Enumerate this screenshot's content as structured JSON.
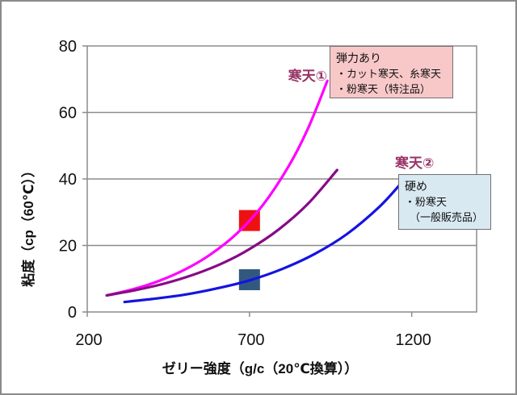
{
  "chart_data": {
    "type": "line",
    "title": "",
    "xlabel": "ゼリー強度（g/c（20℃換算））",
    "ylabel": "粘度（cp（60℃））",
    "xlim": [
      200,
      1400
    ],
    "ylim": [
      0,
      80
    ],
    "x_ticks": [
      200,
      700,
      1200
    ],
    "y_ticks": [
      0,
      20,
      40,
      60,
      80
    ],
    "grid": "horizontal-only",
    "legend_position": "none",
    "series": [
      {
        "id": "kanten-1",
        "label": "寒天①",
        "color": "#ff00ff",
        "points": [
          [
            260,
            5
          ],
          [
            340,
            6.8
          ],
          [
            420,
            9.3
          ],
          [
            500,
            12.7
          ],
          [
            580,
            17.3
          ],
          [
            660,
            23.5
          ],
          [
            740,
            32
          ],
          [
            820,
            43.7
          ],
          [
            880,
            55.1
          ],
          [
            940,
            69.5
          ]
        ]
      },
      {
        "id": "kanten-intermediate",
        "label": "",
        "color": "#870b87",
        "points": [
          [
            260,
            5
          ],
          [
            350,
            6.6
          ],
          [
            440,
            8.6
          ],
          [
            530,
            11.3
          ],
          [
            620,
            14.8
          ],
          [
            700,
            18.9
          ],
          [
            790,
            24.8
          ],
          [
            880,
            32.5
          ],
          [
            970,
            42.7
          ]
        ]
      },
      {
        "id": "kanten-2",
        "label": "寒天②",
        "color": "#1414e0",
        "points": [
          [
            315,
            3
          ],
          [
            400,
            3.9
          ],
          [
            500,
            5.2
          ],
          [
            600,
            7.1
          ],
          [
            700,
            9.5
          ],
          [
            800,
            12.9
          ],
          [
            900,
            17.4
          ],
          [
            1000,
            23.4
          ],
          [
            1100,
            31.6
          ],
          [
            1170,
            39
          ]
        ]
      }
    ],
    "point_markers": [
      {
        "id": "marker-elastic",
        "shape": "square",
        "color": "#ee1111",
        "x": 700,
        "y": 27.5
      },
      {
        "id": "marker-hard",
        "shape": "square",
        "color": "#31597f",
        "x": 700,
        "y": 9.7
      }
    ]
  },
  "labels": {
    "kanten1": "寒天①",
    "kanten2": "寒天②",
    "series_label_color": "#993366",
    "x_axis_title": "ゼリー強度（g/c（20℃換算））",
    "y_axis_title": "粘度（cp（60℃））"
  },
  "annotation_boxes": {
    "elastic": {
      "title": "弾力あり",
      "line1": "・カット寒天、糸寒天",
      "line2": "・粉寒天（特注品）",
      "bg_color": "#f8c8c9",
      "border_color": "#707070"
    },
    "hard": {
      "title": "硬め",
      "line1": "・粉寒天",
      "line2": "（一般販売品）",
      "bg_color": "#d9e9f2",
      "border_color": "#707070"
    }
  },
  "style_colors": {
    "grid": "#8c8c8c",
    "axis_text": "#111111"
  }
}
